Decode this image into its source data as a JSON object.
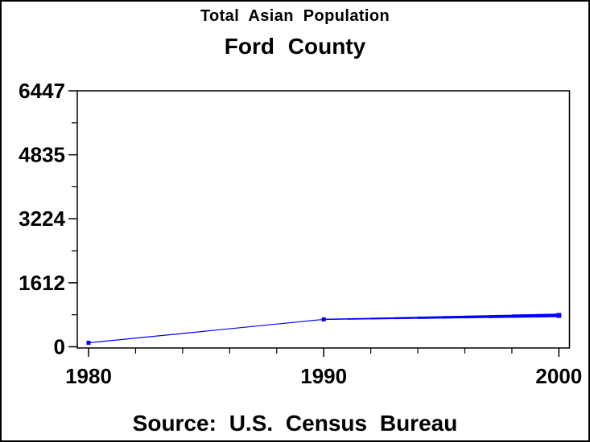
{
  "header": {
    "title": "Total Asian Population",
    "subtitle": "Ford County"
  },
  "footer": {
    "source": "Source: U.S. Census Bureau"
  },
  "chart_data": {
    "type": "line",
    "title": "Total Asian Population",
    "subtitle": "Ford County",
    "source": "Source: U.S. Census Bureau",
    "xlabel": "",
    "ylabel": "",
    "grid": false,
    "frame": true,
    "legend": "none",
    "xlim": [
      1979.52,
      2000.45
    ],
    "ylim": [
      0,
      6447
    ],
    "xticks": [
      1980,
      1990,
      2000
    ],
    "xminor_ticks": [
      1982,
      1984,
      1986,
      1988,
      1992,
      1994,
      1996,
      1998
    ],
    "yticks": [
      0,
      1612,
      3224,
      4835,
      6447
    ],
    "yminor_ticks": [
      806,
      2418,
      4030,
      5641
    ],
    "series": [
      {
        "name": "Total Asian Population",
        "color": "#0000ff",
        "marker": "square",
        "x": [
          1980,
          1990,
          1991,
          1992,
          1993,
          1994,
          1995,
          1996,
          1997,
          1998,
          1999,
          2000
        ],
        "y": [
          100,
          690,
          700,
          710,
          720,
          730,
          740,
          750,
          760,
          770,
          780,
          790
        ]
      }
    ]
  }
}
